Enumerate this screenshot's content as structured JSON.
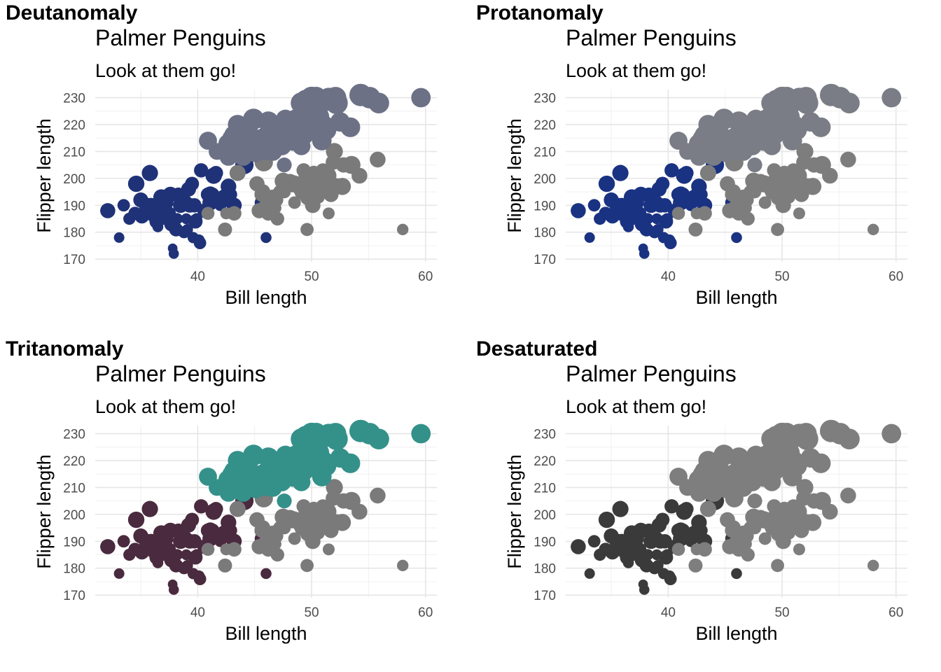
{
  "panels": [
    {
      "label": "Deutanomaly",
      "colors": {
        "Adelie": "#1f3278",
        "Chinstrap": "#7a7a7a",
        "Gentoo": "#6c7186"
      }
    },
    {
      "label": "Protanomaly",
      "colors": {
        "Adelie": "#1a3282",
        "Chinstrap": "#7d7d7d",
        "Gentoo": "#7a7d86"
      }
    },
    {
      "label": "Tritanomaly",
      "colors": {
        "Adelie": "#4a2a3e",
        "Chinstrap": "#7a7a7a",
        "Gentoo": "#34918a"
      }
    },
    {
      "label": "Desaturated",
      "colors": {
        "Adelie": "#3a3a3a",
        "Chinstrap": "#7e7e7e",
        "Gentoo": "#7e7e7e"
      }
    }
  ],
  "chart_data": {
    "type": "scatter",
    "title": "Palmer Penguins",
    "subtitle": "Look at them go!",
    "xlabel": "Bill length",
    "ylabel": "Flipper length",
    "xlim": [
      31,
      61
    ],
    "ylim": [
      169,
      233
    ],
    "xticks": [
      40,
      50,
      60
    ],
    "yticks": [
      170,
      180,
      190,
      200,
      210,
      220,
      230
    ],
    "grid": true,
    "legend": "none",
    "series": [
      {
        "key": "Adelie",
        "points": [
          [
            32.1,
            188
          ],
          [
            33.1,
            178
          ],
          [
            33.5,
            190
          ],
          [
            34.0,
            185
          ],
          [
            34.5,
            187
          ],
          [
            34.6,
            198
          ],
          [
            35.0,
            192
          ],
          [
            35.1,
            186
          ],
          [
            35.3,
            187
          ],
          [
            35.5,
            190
          ],
          [
            35.7,
            189
          ],
          [
            35.9,
            190
          ],
          [
            36.0,
            186
          ],
          [
            36.2,
            187
          ],
          [
            36.4,
            184
          ],
          [
            36.5,
            182
          ],
          [
            36.6,
            185
          ],
          [
            36.7,
            187
          ],
          [
            36.8,
            193
          ],
          [
            37.0,
            185
          ],
          [
            37.2,
            191
          ],
          [
            37.3,
            192
          ],
          [
            37.5,
            187
          ],
          [
            37.6,
            194
          ],
          [
            37.7,
            183
          ],
          [
            37.8,
            174
          ],
          [
            37.9,
            172
          ],
          [
            38.1,
            181
          ],
          [
            38.2,
            185
          ],
          [
            38.5,
            190
          ],
          [
            38.6,
            190
          ],
          [
            38.8,
            180
          ],
          [
            39.0,
            185
          ],
          [
            39.1,
            181
          ],
          [
            39.2,
            196
          ],
          [
            39.3,
            190
          ],
          [
            39.5,
            198
          ],
          [
            39.6,
            178
          ],
          [
            39.8,
            184
          ],
          [
            40.1,
            177
          ],
          [
            40.2,
            176
          ],
          [
            40.6,
            188
          ],
          [
            40.9,
            194
          ],
          [
            41.1,
            191
          ],
          [
            41.1,
            194
          ],
          [
            41.3,
            194
          ],
          [
            41.6,
            202
          ],
          [
            42.0,
            190
          ],
          [
            42.1,
            191
          ],
          [
            42.3,
            193
          ],
          [
            42.7,
            197
          ],
          [
            42.9,
            194
          ],
          [
            43.2,
            190
          ],
          [
            44.1,
            205
          ],
          [
            45.6,
            191
          ],
          [
            46.0,
            178
          ],
          [
            37.0,
            192
          ],
          [
            38.3,
            194
          ],
          [
            36.9,
            190
          ],
          [
            39.7,
            190
          ],
          [
            40.3,
            203
          ],
          [
            35.8,
            202
          ],
          [
            38.9,
            191
          ],
          [
            41.4,
            201
          ],
          [
            39.9,
            185
          ]
        ]
      },
      {
        "key": "Chinstrap",
        "points": [
          [
            40.9,
            187
          ],
          [
            42.4,
            181
          ],
          [
            42.5,
            187
          ],
          [
            43.2,
            187
          ],
          [
            43.5,
            202
          ],
          [
            45.2,
            198
          ],
          [
            45.4,
            188
          ],
          [
            45.6,
            194
          ],
          [
            45.7,
            195
          ],
          [
            45.9,
            190
          ],
          [
            46.1,
            193
          ],
          [
            46.4,
            190
          ],
          [
            46.5,
            192
          ],
          [
            46.6,
            193
          ],
          [
            46.8,
            189
          ],
          [
            46.9,
            192
          ],
          [
            47.0,
            185
          ],
          [
            47.5,
            199
          ],
          [
            47.6,
            195
          ],
          [
            48.1,
            199
          ],
          [
            48.5,
            191
          ],
          [
            49.0,
            196
          ],
          [
            49.2,
            195
          ],
          [
            49.5,
            200
          ],
          [
            49.7,
            193
          ],
          [
            49.8,
            198
          ],
          [
            50.1,
            190
          ],
          [
            50.2,
            202
          ],
          [
            50.3,
            197
          ],
          [
            50.5,
            201
          ],
          [
            50.6,
            193
          ],
          [
            50.8,
            201
          ],
          [
            50.9,
            196
          ],
          [
            51.0,
            203
          ],
          [
            51.3,
            197
          ],
          [
            51.4,
            201
          ],
          [
            51.5,
            187
          ],
          [
            51.7,
            194
          ],
          [
            51.9,
            206
          ],
          [
            52.0,
            210
          ],
          [
            52.2,
            197
          ],
          [
            52.7,
            197
          ],
          [
            52.8,
            205
          ],
          [
            53.5,
            205
          ],
          [
            54.2,
            201
          ],
          [
            55.8,
            207
          ],
          [
            58.0,
            181
          ],
          [
            49.3,
            203
          ],
          [
            50.0,
            196
          ],
          [
            46.2,
            187
          ],
          [
            47.2,
            195
          ],
          [
            48.4,
            198
          ],
          [
            49.6,
            181
          ],
          [
            50.7,
            197
          ],
          [
            45.8,
            206
          ]
        ]
      },
      {
        "key": "Gentoo",
        "points": [
          [
            40.9,
            214
          ],
          [
            41.7,
            210
          ],
          [
            42.0,
            210
          ],
          [
            42.6,
            213
          ],
          [
            42.7,
            208
          ],
          [
            42.8,
            209
          ],
          [
            42.9,
            215
          ],
          [
            43.2,
            216
          ],
          [
            43.3,
            209
          ],
          [
            43.4,
            213
          ],
          [
            43.5,
            220
          ],
          [
            43.6,
            217
          ],
          [
            43.8,
            208
          ],
          [
            44.0,
            208
          ],
          [
            44.4,
            219
          ],
          [
            44.5,
            210
          ],
          [
            44.9,
            213
          ],
          [
            45.1,
            215
          ],
          [
            45.2,
            212
          ],
          [
            45.3,
            210
          ],
          [
            45.4,
            211
          ],
          [
            45.5,
            210
          ],
          [
            45.7,
            214
          ],
          [
            45.8,
            215
          ],
          [
            46.1,
            215
          ],
          [
            46.2,
            221
          ],
          [
            46.4,
            215
          ],
          [
            46.5,
            213
          ],
          [
            46.6,
            210
          ],
          [
            46.8,
            215
          ],
          [
            46.9,
            216
          ],
          [
            47.2,
            214
          ],
          [
            47.3,
            216
          ],
          [
            47.4,
            212
          ],
          [
            47.5,
            218
          ],
          [
            47.7,
            222
          ],
          [
            47.8,
            215
          ],
          [
            48.1,
            220
          ],
          [
            48.2,
            221
          ],
          [
            48.4,
            214
          ],
          [
            48.5,
            222
          ],
          [
            48.7,
            222
          ],
          [
            48.8,
            222
          ],
          [
            49.0,
            220
          ],
          [
            49.1,
            212
          ],
          [
            49.2,
            221
          ],
          [
            49.3,
            217
          ],
          [
            49.4,
            216
          ],
          [
            49.5,
            229
          ],
          [
            49.6,
            225
          ],
          [
            49.8,
            229
          ],
          [
            49.9,
            223
          ],
          [
            50.0,
            230
          ],
          [
            50.1,
            225
          ],
          [
            50.2,
            218
          ],
          [
            50.4,
            224
          ],
          [
            50.5,
            222
          ],
          [
            50.7,
            223
          ],
          [
            50.8,
            228
          ],
          [
            51.1,
            220
          ],
          [
            51.3,
            218
          ],
          [
            51.5,
            230
          ],
          [
            52.1,
            230
          ],
          [
            52.2,
            228
          ],
          [
            52.5,
            221
          ],
          [
            53.4,
            219
          ],
          [
            54.3,
            231
          ],
          [
            55.1,
            230
          ],
          [
            55.9,
            228
          ],
          [
            59.6,
            230
          ],
          [
            44.9,
            222
          ],
          [
            45.1,
            209
          ],
          [
            46.0,
            210
          ],
          [
            47.6,
            205
          ],
          [
            49.1,
            228
          ],
          [
            50.0,
            220
          ],
          [
            50.4,
            230
          ],
          [
            50.9,
            214
          ]
        ]
      }
    ]
  }
}
